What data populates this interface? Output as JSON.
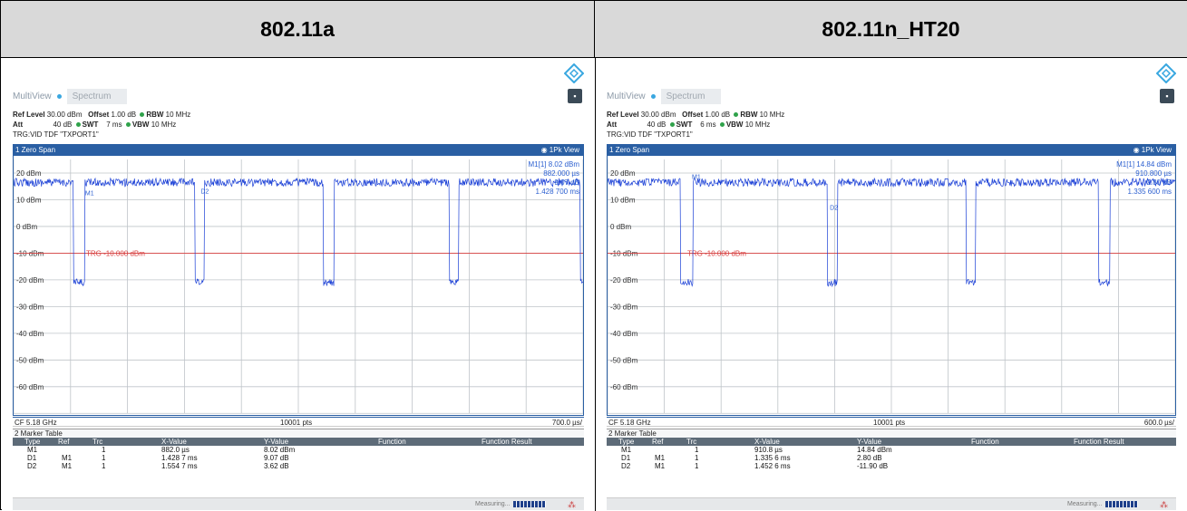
{
  "headers": {
    "left": "802.11a",
    "right": "802.11n_HT20"
  },
  "panels": [
    {
      "multiview": {
        "title": "MultiView",
        "tab": "Spectrum"
      },
      "params": {
        "ref_level_label": "Ref Level",
        "ref_level": "30.00 dBm",
        "offset_label": "Offset",
        "offset": "1.00 dB",
        "rbw_label": "RBW",
        "rbw": "10 MHz",
        "att_label": "Att",
        "att": "40 dB",
        "swt_label": "SWT",
        "swt": "7 ms",
        "vbw_label": "VBW",
        "vbw": "10 MHz",
        "trg": "TRG:VID  TDF \"TXPORT1\""
      },
      "window": {
        "title": "1 Zero Span",
        "view": "1Pk View"
      },
      "marker_readout": {
        "name": "M1[1]",
        "y": "8.02 dBm",
        "x": "882.000 µs",
        "d1_y": "9.07 dB",
        "d1_x": "1.428 700 ms"
      },
      "y_labels": [
        "20 dBm",
        "10 dBm",
        "0 dBm",
        "-10 dBm",
        "-20 dBm",
        "-30 dBm",
        "-40 dBm",
        "-50 dBm",
        "-60 dBm"
      ],
      "trg_label": "TRG -10.000 dBm",
      "markers_on_trace": [
        "M1",
        "D2"
      ],
      "footer": {
        "cf": "CF 5.18 GHz",
        "pts": "10001 pts",
        "div": "700.0 µs/"
      },
      "marker_table": {
        "title": "2 Marker Table",
        "columns": [
          "Type",
          "Ref",
          "Trc",
          "X-Value",
          "Y-Value",
          "Function",
          "Function Result"
        ],
        "rows": [
          [
            "M1",
            "",
            "1",
            "882.0 µs",
            "8.02 dBm"
          ],
          [
            "D1",
            "M1",
            "1",
            "1.428 7 ms",
            "9.07 dB"
          ],
          [
            "D2",
            "M1",
            "1",
            "1.554 7 ms",
            "3.62 dB"
          ]
        ]
      },
      "status": {
        "measuring": "Measuring..."
      },
      "colors": {
        "trace": "#1a3fd6",
        "trg_line": "#d94040",
        "window": "#2a5fa3"
      }
    },
    {
      "multiview": {
        "title": "MultiView",
        "tab": "Spectrum"
      },
      "params": {
        "ref_level_label": "Ref Level",
        "ref_level": "30.00 dBm",
        "offset_label": "Offset",
        "offset": "1.00 dB",
        "rbw_label": "RBW",
        "rbw": "10 MHz",
        "att_label": "Att",
        "att": "40 dB",
        "swt_label": "SWT",
        "swt": "6 ms",
        "vbw_label": "VBW",
        "vbw": "10 MHz",
        "trg": "TRG:VID  TDF \"TXPORT1\""
      },
      "window": {
        "title": "1 Zero Span",
        "view": "1Pk View"
      },
      "marker_readout": {
        "name": "M1[1]",
        "y": "14.84 dBm",
        "x": "910.800 µs",
        "d1_y": "2.80 dB",
        "d1_x": "1.335 600 ms"
      },
      "y_labels": [
        "20 dBm",
        "10 dBm",
        "0 dBm",
        "-10 dBm",
        "-20 dBm",
        "-30 dBm",
        "-40 dBm",
        "-50 dBm",
        "-60 dBm"
      ],
      "trg_label": "TRG -10.000 dBm",
      "markers_on_trace": [
        "M1",
        "D2"
      ],
      "footer": {
        "cf": "CF 5.18 GHz",
        "pts": "10001 pts",
        "div": "600.0 µs/"
      },
      "marker_table": {
        "title": "2 Marker Table",
        "columns": [
          "Type",
          "Ref",
          "Trc",
          "X-Value",
          "Y-Value",
          "Function",
          "Function Result"
        ],
        "rows": [
          [
            "M1",
            "",
            "1",
            "910.8 µs",
            "14.84 dBm"
          ],
          [
            "D1",
            "M1",
            "1",
            "1.335 6 ms",
            "2.80 dB"
          ],
          [
            "D2",
            "M1",
            "1",
            "1.452 6 ms",
            "-11.90 dB"
          ]
        ]
      },
      "status": {
        "measuring": "Measuring..."
      },
      "colors": {
        "trace": "#1a3fd6",
        "trg_line": "#d94040",
        "window": "#2a5fa3"
      }
    }
  ]
}
